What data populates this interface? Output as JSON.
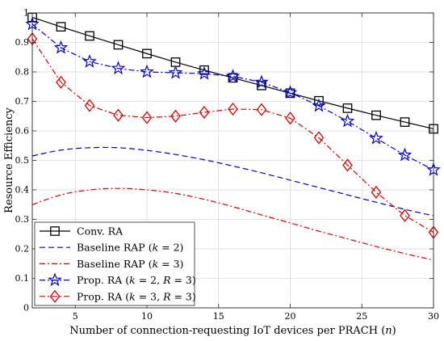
{
  "chart_data": {
    "type": "line",
    "title": "",
    "xlabel": "Number of connection-requesting IoT devices per PRACH (n)",
    "ylabel": "Resource Efficiency",
    "xlim": [
      2,
      30
    ],
    "ylim": [
      0,
      1
    ],
    "xticks": [
      "5",
      "10",
      "15",
      "20",
      "25",
      "30"
    ],
    "yticks": [
      "0",
      "0.1",
      "0.2",
      "0.3",
      "0.4",
      "0.5",
      "0.6",
      "0.7",
      "0.8",
      "0.9",
      "1"
    ],
    "grid": true,
    "legend_position": "bottom-left",
    "series": [
      {
        "name": "Conv. RA",
        "color": "#000000",
        "line": "solid",
        "marker": "square",
        "x": [
          2,
          4,
          6,
          8,
          10,
          12,
          14,
          16,
          18,
          20,
          22,
          24,
          26,
          28,
          30
        ],
        "y": [
          0.985,
          0.953,
          0.922,
          0.892,
          0.862,
          0.833,
          0.806,
          0.78,
          0.754,
          0.728,
          0.702,
          0.677,
          0.653,
          0.63,
          0.607
        ]
      },
      {
        "name": "Baseline RAP (k = 2)",
        "color": "#0000dd",
        "line": "dashed",
        "marker": "none",
        "x": [
          2,
          4,
          6,
          8,
          10,
          12,
          14,
          16,
          18,
          20,
          22,
          24,
          26,
          28,
          30
        ],
        "y": [
          0.515,
          0.535,
          0.543,
          0.543,
          0.534,
          0.52,
          0.502,
          0.481,
          0.458,
          0.433,
          0.408,
          0.383,
          0.358,
          0.334,
          0.312
        ]
      },
      {
        "name": "Baseline RAP (k = 3)",
        "color": "#dd0000",
        "line": "dashdot",
        "marker": "none",
        "x": [
          2,
          4,
          6,
          8,
          10,
          12,
          14,
          16,
          18,
          20,
          22,
          24,
          26,
          28,
          30
        ],
        "y": [
          0.35,
          0.383,
          0.4,
          0.405,
          0.4,
          0.388,
          0.368,
          0.343,
          0.315,
          0.288,
          0.26,
          0.234,
          0.208,
          0.184,
          0.162
        ]
      },
      {
        "name": "Prop. RA (k = 2, R = 3)",
        "color": "#0000dd",
        "line": "dashdot",
        "marker": "star",
        "x": [
          2,
          4,
          6,
          8,
          10,
          12,
          14,
          16,
          18,
          20,
          22,
          24,
          26,
          28,
          30
        ],
        "y": [
          0.962,
          0.882,
          0.835,
          0.812,
          0.8,
          0.797,
          0.794,
          0.785,
          0.765,
          0.73,
          0.685,
          0.633,
          0.575,
          0.518,
          0.468
        ]
      },
      {
        "name": "Prop. RA (k = 3, R = 3)",
        "color": "#dd0000",
        "line": "dashdot",
        "marker": "diamond",
        "x": [
          2,
          4,
          6,
          8,
          10,
          12,
          14,
          16,
          18,
          20,
          22,
          24,
          26,
          28,
          30
        ],
        "y": [
          0.912,
          0.765,
          0.686,
          0.653,
          0.645,
          0.65,
          0.663,
          0.674,
          0.672,
          0.643,
          0.577,
          0.484,
          0.392,
          0.313,
          0.256
        ]
      }
    ],
    "legend_labels": [
      {
        "prefix": "Conv. RA",
        "parts": []
      },
      {
        "prefix": "Baseline RAP (",
        "parts": [
          [
            "k",
            true
          ],
          [
            " = 2)",
            false
          ]
        ]
      },
      {
        "prefix": "Baseline RAP (",
        "parts": [
          [
            "k",
            true
          ],
          [
            " = 3)",
            false
          ]
        ]
      },
      {
        "prefix": "Prop. RA (",
        "parts": [
          [
            "k",
            true
          ],
          [
            " = 2, ",
            false
          ],
          [
            "R",
            true
          ],
          [
            " = 3)",
            false
          ]
        ]
      },
      {
        "prefix": "Prop. RA (",
        "parts": [
          [
            "k",
            true
          ],
          [
            " = 3, ",
            false
          ],
          [
            "R",
            true
          ],
          [
            " = 3)",
            false
          ]
        ]
      }
    ],
    "xlabel_parts": [
      [
        "Number of connection-requesting IoT devices per PRACH (",
        false
      ],
      [
        "n",
        true
      ],
      [
        ")",
        false
      ]
    ]
  }
}
